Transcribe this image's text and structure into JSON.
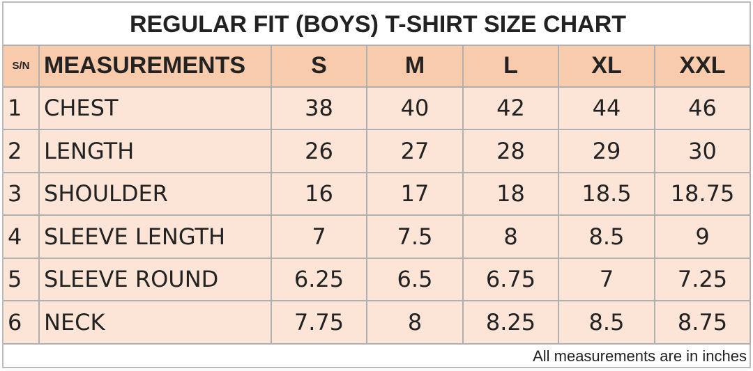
{
  "title": "REGULAR FIT (BOYS) T-SHIRT SIZE CHART",
  "table": {
    "header": [
      "S/N",
      "MEASUREMENTS",
      "S",
      "M",
      "L",
      "XL",
      "XXL"
    ],
    "rows": [
      [
        "1",
        "CHEST",
        "38",
        "40",
        "42",
        "44",
        "46"
      ],
      [
        "2",
        "LENGTH",
        "26",
        "27",
        "28",
        "29",
        "30"
      ],
      [
        "3",
        "SHOULDER",
        "16",
        "17",
        "18",
        "18.5",
        "18.75"
      ],
      [
        "4",
        "SLEEVE LENGTH",
        "7",
        "7.5",
        "8",
        "8.5",
        "9"
      ],
      [
        "5",
        "SLEEVE ROUND",
        "6.25",
        "6.5",
        "6.75",
        "7",
        "7.25"
      ],
      [
        "6",
        "NECK",
        "7.75",
        "8",
        "8.25",
        "8.5",
        "8.75"
      ]
    ]
  },
  "footnote": "All measurements are in inches"
}
